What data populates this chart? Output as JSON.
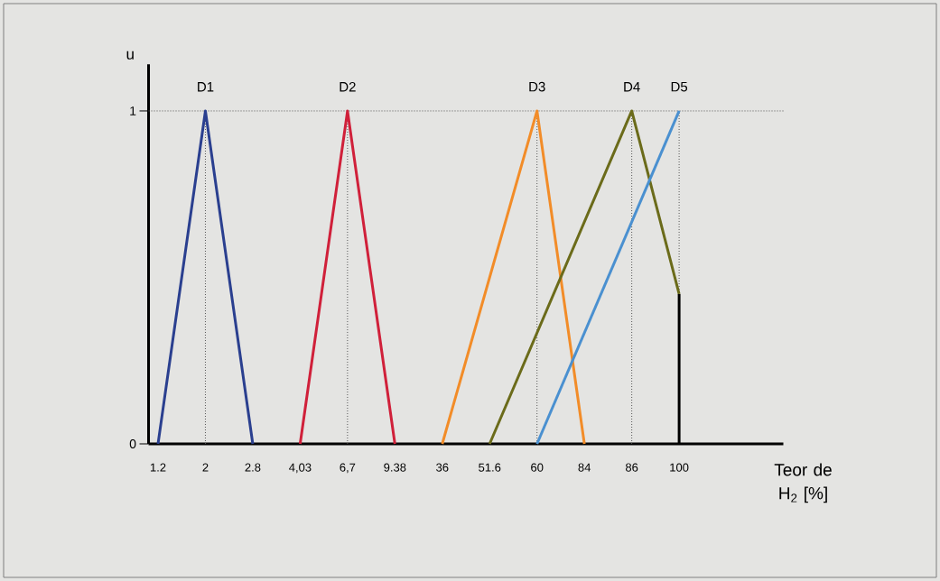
{
  "chart_data": {
    "type": "line",
    "ylabel": "u",
    "xlabel": "Teor de H$_{2}$ [%]",
    "categories": [
      "1.2",
      "2",
      "2.8",
      "4,03",
      "6,7",
      "9.38",
      "36",
      "51.6",
      "60",
      "84",
      "86",
      "100"
    ],
    "series": [
      {
        "name": "D1",
        "color": "#2a3f8f",
        "values": [
          0,
          1,
          0,
          null,
          null,
          null,
          null,
          null,
          null,
          null,
          null,
          null
        ]
      },
      {
        "name": "D2",
        "color": "#d0203a",
        "values": [
          null,
          null,
          null,
          0,
          1,
          0,
          null,
          null,
          null,
          null,
          null,
          null
        ]
      },
      {
        "name": "D3",
        "color": "#f28c28",
        "values": [
          null,
          null,
          null,
          null,
          null,
          null,
          0,
          null,
          1,
          0,
          null,
          null
        ]
      },
      {
        "name": "D4",
        "color": "#6b6b1a",
        "values": [
          null,
          null,
          null,
          null,
          null,
          null,
          null,
          0,
          null,
          null,
          1,
          0.45
        ]
      },
      {
        "name": "D5",
        "color": "#4a90d0",
        "values": [
          null,
          null,
          null,
          null,
          null,
          null,
          null,
          null,
          0,
          null,
          null,
          1
        ]
      },
      {
        "type": "bar",
        "color": "#000000",
        "values": [
          null,
          null,
          null,
          null,
          null,
          null,
          null,
          null,
          null,
          null,
          null,
          0.45
        ]
      }
    ],
    "ylim": [
      0,
      1.14
    ],
    "yticks": [
      0,
      1
    ],
    "ref_lines": [
      {
        "axis": "y",
        "value": 1,
        "line_style": "dotted",
        "color": "#555555"
      },
      {
        "axis": "x",
        "value": "2",
        "line_style": "dotted",
        "color": "#555555"
      },
      {
        "axis": "x",
        "value": "6,7",
        "line_style": "dotted",
        "color": "#555555"
      },
      {
        "axis": "x",
        "value": "60",
        "line_style": "dotted",
        "color": "#555555"
      },
      {
        "axis": "x",
        "value": "86",
        "line_style": "dotted",
        "color": "#555555"
      },
      {
        "axis": "x",
        "value": "100",
        "line_style": "dotted",
        "color": "#555555"
      }
    ],
    "grid": false,
    "marker": "none",
    "line_style": "solid"
  }
}
